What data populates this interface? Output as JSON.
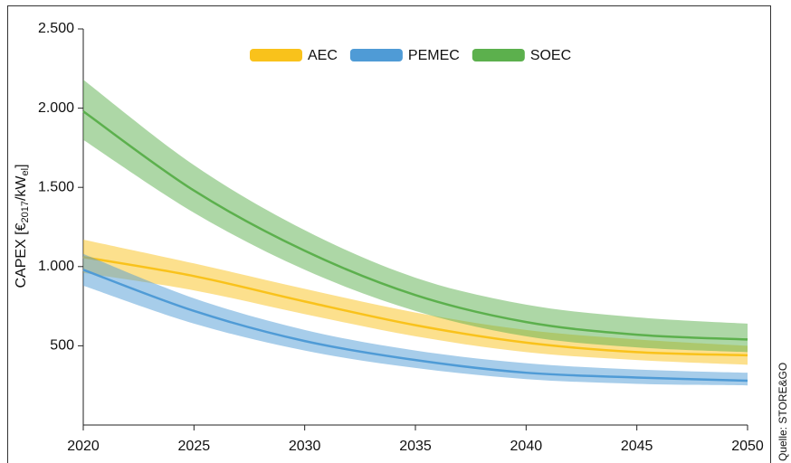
{
  "chart_data": {
    "type": "band",
    "y_label_parts": [
      "CAPEX [€",
      "2017",
      "/kW",
      "el",
      "]"
    ],
    "source": "Quelle: STORE&GO",
    "x": [
      2020,
      2025,
      2030,
      2035,
      2040,
      2045,
      2050
    ],
    "xlim": [
      2020,
      2050
    ],
    "xticks": [
      2020,
      2025,
      2030,
      2035,
      2040,
      2045,
      2050
    ],
    "ylim": [
      0,
      2500
    ],
    "yticks": [
      500,
      {
        "value": 1000,
        "label": "1.000"
      },
      {
        "value": 1500,
        "label": "1.500"
      },
      {
        "value": 2000,
        "label": "2.000"
      },
      {
        "value": 2500,
        "label": "2.500"
      }
    ],
    "series": [
      {
        "name": "AEC",
        "color": "#f9c21b",
        "values": [
          1060,
          940,
          780,
          630,
          520,
          460,
          440
        ],
        "lower": [
          960,
          850,
          700,
          560,
          460,
          410,
          380
        ],
        "upper": [
          1170,
          1020,
          860,
          710,
          600,
          540,
          500
        ]
      },
      {
        "name": "PEMEC",
        "color": "#4f9bd6",
        "values": [
          980,
          720,
          530,
          410,
          330,
          300,
          280
        ],
        "lower": [
          880,
          640,
          470,
          360,
          290,
          260,
          250
        ],
        "upper": [
          1080,
          800,
          600,
          470,
          390,
          350,
          330
        ]
      },
      {
        "name": "SOEC",
        "color": "#5cb04d",
        "values": [
          1980,
          1480,
          1100,
          820,
          650,
          570,
          540
        ],
        "lower": [
          1800,
          1340,
          980,
          720,
          560,
          490,
          460
        ],
        "upper": [
          2180,
          1640,
          1230,
          930,
          760,
          680,
          640
        ]
      }
    ]
  }
}
